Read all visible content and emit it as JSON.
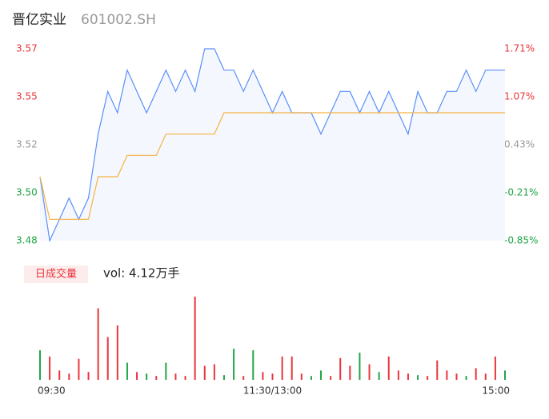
{
  "chart_data": {
    "type": "intraday",
    "title": "晋亿实业",
    "subtitle": "601002.SH",
    "xlim": [
      0,
      240
    ],
    "xticks": [
      {
        "value": 0,
        "label": "09:30"
      },
      {
        "value": 120,
        "label": "11:30/13:00"
      },
      {
        "value": 240,
        "label": "15:00"
      }
    ],
    "ylim": [
      3.48,
      3.57
    ],
    "yticks": [
      {
        "value": 3.48,
        "label": "3.48"
      },
      {
        "value": 3.5025,
        "label": "3.50"
      },
      {
        "value": 3.525,
        "label": "3.52"
      },
      {
        "value": 3.5475,
        "label": "3.55"
      },
      {
        "value": 3.57,
        "label": "3.57"
      }
    ],
    "y2lim": [
      -0.85,
      1.71
    ],
    "y2ticks": [
      {
        "value": -0.85,
        "label": "-0.85%"
      },
      {
        "value": -0.21,
        "label": "-0.21%"
      },
      {
        "value": 0.43,
        "label": "0.43%"
      },
      {
        "value": 1.07,
        "label": "1.07%"
      },
      {
        "value": 1.71,
        "label": "1.71%"
      }
    ],
    "x": [
      0,
      5,
      10,
      15,
      20,
      25,
      30,
      35,
      40,
      45,
      50,
      55,
      60,
      65,
      70,
      75,
      80,
      85,
      90,
      95,
      100,
      105,
      110,
      115,
      120,
      125,
      130,
      135,
      140,
      145,
      150,
      155,
      160,
      165,
      170,
      175,
      180,
      185,
      190,
      195,
      200,
      205,
      210,
      215,
      220,
      225,
      230,
      235,
      240
    ],
    "series": [
      {
        "name": "price",
        "color": "#5b8ff9",
        "values": [
          3.51,
          3.48,
          3.49,
          3.5,
          3.49,
          3.5,
          3.53,
          3.55,
          3.54,
          3.56,
          3.55,
          3.54,
          3.55,
          3.56,
          3.55,
          3.56,
          3.55,
          3.57,
          3.57,
          3.56,
          3.56,
          3.55,
          3.56,
          3.55,
          3.54,
          3.55,
          3.54,
          3.54,
          3.54,
          3.53,
          3.54,
          3.55,
          3.55,
          3.54,
          3.55,
          3.54,
          3.55,
          3.54,
          3.53,
          3.55,
          3.54,
          3.54,
          3.55,
          3.55,
          3.56,
          3.55,
          3.56,
          3.56,
          3.56
        ]
      },
      {
        "name": "avg",
        "color": "#f5b342",
        "values": [
          3.51,
          3.49,
          3.49,
          3.49,
          3.49,
          3.49,
          3.51,
          3.51,
          3.51,
          3.52,
          3.52,
          3.52,
          3.52,
          3.53,
          3.53,
          3.53,
          3.53,
          3.53,
          3.53,
          3.54,
          3.54,
          3.54,
          3.54,
          3.54,
          3.54,
          3.54,
          3.54,
          3.54,
          3.54,
          3.54,
          3.54,
          3.54,
          3.54,
          3.54,
          3.54,
          3.54,
          3.54,
          3.54,
          3.54,
          3.54,
          3.54,
          3.54,
          3.54,
          3.54,
          3.54,
          3.54,
          3.54,
          3.54,
          3.54
        ]
      }
    ],
    "volume": {
      "legend": "日成交量",
      "label": "vol: 4.12万手",
      "vlim": [
        0,
        110
      ],
      "values": [
        38,
        30,
        12,
        8,
        27,
        10,
        92,
        55,
        70,
        22,
        10,
        8,
        5,
        22,
        8,
        5,
        107,
        18,
        20,
        6,
        40,
        5,
        38,
        10,
        8,
        30,
        30,
        8,
        5,
        12,
        5,
        28,
        18,
        35,
        20,
        10,
        30,
        12,
        8,
        6,
        5,
        25,
        12,
        8,
        5,
        15,
        8,
        30,
        12
      ],
      "colors": [
        "#21a547",
        "#e8353b",
        "#e8353b",
        "#e8353b",
        "#e8353b",
        "#e8353b",
        "#e8353b",
        "#e8353b",
        "#e8353b",
        "#21a547",
        "#e8353b",
        "#21a547",
        "#e8353b",
        "#21a547",
        "#e8353b",
        "#e8353b",
        "#e8353b",
        "#e8353b",
        "#e8353b",
        "#21a547",
        "#21a547",
        "#e8353b",
        "#21a547",
        "#e8353b",
        "#e8353b",
        "#e8353b",
        "#e8353b",
        "#e8353b",
        "#21a547",
        "#21a547",
        "#e8353b",
        "#e8353b",
        "#e8353b",
        "#21a547",
        "#e8353b",
        "#21a547",
        "#e8353b",
        "#e8353b",
        "#e8353b",
        "#21a547",
        "#e8353b",
        "#e8353b",
        "#e8353b",
        "#e8353b",
        "#21a547",
        "#e8353b",
        "#e8353b",
        "#e8353b",
        "#21a547"
      ]
    },
    "y2tick_colors": [
      "#21a547",
      "#21a547",
      "#999999",
      "#e8353b",
      "#e8353b"
    ]
  }
}
